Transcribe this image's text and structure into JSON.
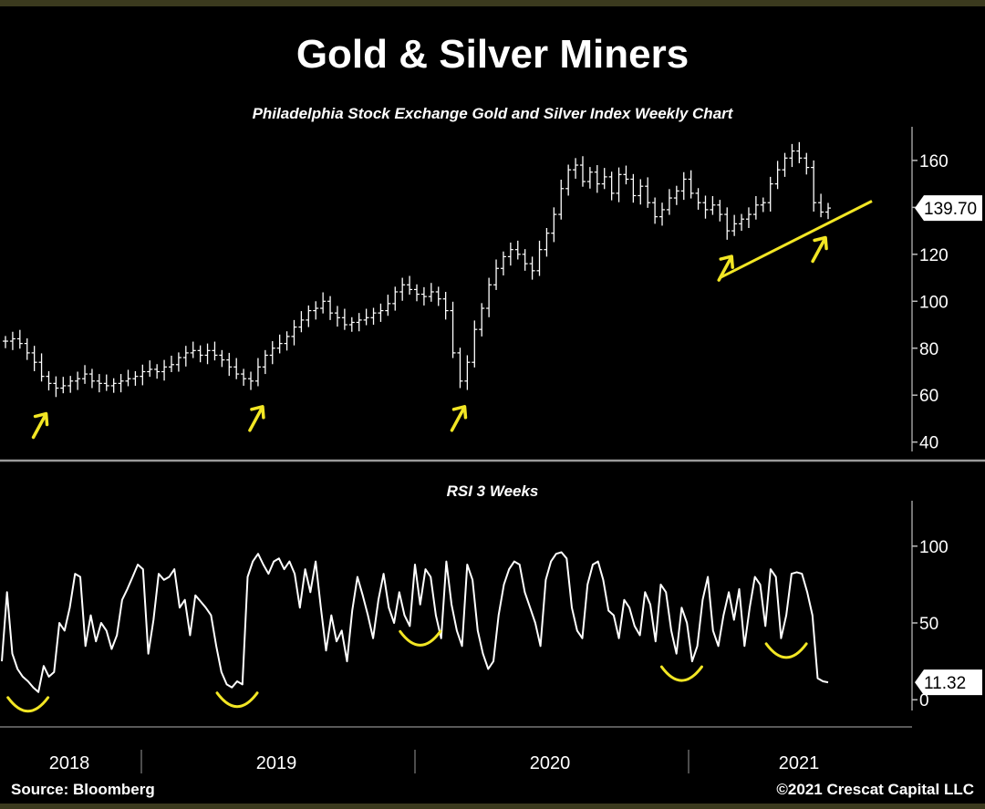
{
  "title": "Gold & Silver Miners",
  "source": "Source: Bloomberg",
  "copyright": "©2021 Crescat Capital LLC",
  "colors": {
    "background": "#000000",
    "price": "#ffffff",
    "annotation": "#f2e624"
  },
  "chart_data": [
    {
      "type": "line",
      "title": "Philadelphia Stock Exchange Gold and Silver Index Weekly Chart",
      "ylim": [
        36,
        172
      ],
      "yticks": [
        40,
        60,
        80,
        100,
        120,
        140,
        160
      ],
      "y_tick_labels": [
        "40",
        "60",
        "80",
        "100",
        "120",
        "140",
        "160"
      ],
      "last_value_label": "139.70",
      "last_value": 139.7,
      "x_axis_labels": [
        "2018",
        "2019",
        "2020",
        "2021"
      ],
      "grid": false,
      "series": [
        {
          "values": [
            83,
            84,
            82,
            78,
            74,
            68,
            65,
            63,
            64,
            66,
            67,
            69,
            66,
            65,
            64,
            65,
            66,
            67,
            68,
            70,
            71,
            70,
            72,
            73,
            76,
            78,
            79,
            77,
            79,
            77,
            75,
            72,
            69,
            67,
            66,
            72,
            77,
            80,
            82,
            85,
            89,
            92,
            96,
            97,
            100,
            95,
            93,
            90,
            91,
            92,
            93,
            95,
            96,
            99,
            104,
            107,
            105,
            103,
            102,
            104,
            101,
            96,
            78,
            66,
            74,
            88,
            97,
            107,
            114,
            119,
            122,
            120,
            116,
            113,
            122,
            129,
            137,
            148,
            156,
            158,
            151,
            155,
            150,
            153,
            146,
            154,
            152,
            145,
            149,
            142,
            136,
            139,
            144,
            147,
            152,
            146,
            142,
            139,
            141,
            137,
            130,
            133,
            135,
            137,
            141,
            142,
            150,
            156,
            161,
            164,
            161,
            157,
            142,
            138,
            139.7
          ]
        }
      ],
      "annotations": {
        "trendline": [
          [
            99,
            110
          ],
          [
            114,
            141.5
          ]
        ],
        "up_arrows_at": [
          5,
          35,
          63,
          100,
          113
        ]
      }
    },
    {
      "type": "line",
      "title": "RSI 3 Weeks",
      "ylim": [
        -7,
        126
      ],
      "yticks": [
        0,
        50,
        100
      ],
      "y_tick_labels": [
        "0",
        "50",
        "100"
      ],
      "last_value_label": "11.32",
      "last_value": 11.32,
      "grid": false,
      "series": [
        {
          "values": [
            25,
            70,
            30,
            20,
            15,
            12,
            8,
            5,
            22,
            15,
            18,
            50,
            45,
            60,
            82,
            80,
            35,
            55,
            38,
            50,
            45,
            33,
            42,
            65,
            72,
            80,
            88,
            85,
            30,
            52,
            82,
            78,
            80,
            85,
            60,
            65,
            42,
            68,
            64,
            60,
            55,
            35,
            18,
            10,
            8,
            12,
            10,
            80,
            90,
            95,
            88,
            82,
            90,
            92,
            85,
            90,
            82,
            60,
            85,
            70,
            90,
            60,
            32,
            55,
            38,
            45,
            25,
            58,
            80,
            68,
            55,
            40,
            65,
            82,
            60,
            50,
            70,
            55,
            48,
            88,
            62,
            85,
            80,
            55,
            40,
            90,
            62,
            45,
            35,
            88,
            78,
            45,
            30,
            20,
            25,
            55,
            75,
            85,
            90,
            88,
            70,
            60,
            50,
            35,
            78,
            90,
            95,
            96,
            92,
            60,
            45,
            40,
            75,
            88,
            90,
            78,
            58,
            55,
            40,
            65,
            60,
            48,
            42,
            70,
            62,
            38,
            75,
            70,
            45,
            30,
            60,
            50,
            25,
            35,
            65,
            80,
            45,
            35,
            55,
            70,
            52,
            72,
            35,
            60,
            80,
            75,
            48,
            85,
            80,
            40,
            55,
            82,
            83,
            82,
            70,
            55,
            14,
            12,
            11.32
          ]
        }
      ],
      "annotations": {
        "bowl_markers_at": [
          5,
          45,
          80,
          130,
          150
        ]
      }
    }
  ]
}
